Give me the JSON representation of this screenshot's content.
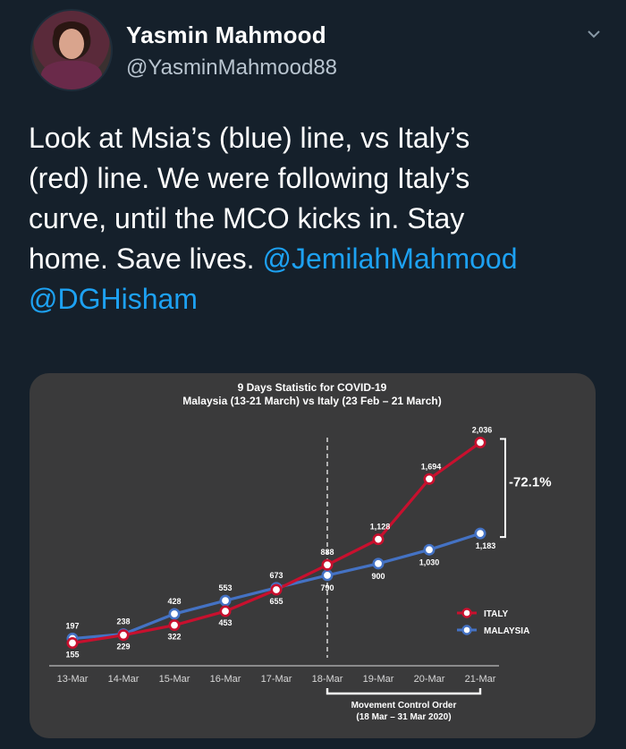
{
  "tweet": {
    "author_name": "Yasmin Mahmood",
    "author_handle": "@YasminMahmood88",
    "text_lines": [
      {
        "plain": "Look at Msia’s (blue) line, vs Italy’s",
        "mention": ""
      },
      {
        "plain": "(red) line.  We were following Italy’s",
        "mention": ""
      },
      {
        "plain": "curve, until the MCO kicks in.  Stay",
        "mention": ""
      },
      {
        "plain": "home. Save lives. ",
        "mention": "@JemilahMahmood"
      },
      {
        "plain": "",
        "mention": "@DGHisham"
      }
    ],
    "menu_icon": "chevron-down-icon"
  },
  "chart_data": {
    "type": "line",
    "title": "9 Days Statistic for COVID-19",
    "subtitle": "Malaysia (13-21 March) vs Italy (23 Feb – 21 March)",
    "categories": [
      "13-Mar",
      "14-Mar",
      "15-Mar",
      "16-Mar",
      "17-Mar",
      "18-Mar",
      "19-Mar",
      "20-Mar",
      "21-Mar"
    ],
    "series": [
      {
        "name": "ITALY",
        "color": "#c8102e",
        "values": [
          155,
          229,
          322,
          453,
          655,
          888,
          1128,
          1694,
          2036
        ],
        "labels": [
          "155",
          "229",
          "322",
          "453",
          "655",
          "888",
          "1,128",
          "1,694",
          "2,036"
        ]
      },
      {
        "name": "MALAYSIA",
        "color": "#4472c4",
        "values": [
          197,
          238,
          428,
          553,
          673,
          790,
          900,
          1030,
          1183
        ],
        "labels": [
          "197",
          "238",
          "428",
          "553",
          "673",
          "790",
          "900",
          "1,030",
          "1,183"
        ]
      }
    ],
    "ylim": [
      0,
      2200
    ],
    "annotation_diff": "-72.1%",
    "mco_label_line1": "Movement Control Order",
    "mco_label_line2": "(18 Mar – 31 Mar 2020)",
    "legend_position": "right"
  }
}
